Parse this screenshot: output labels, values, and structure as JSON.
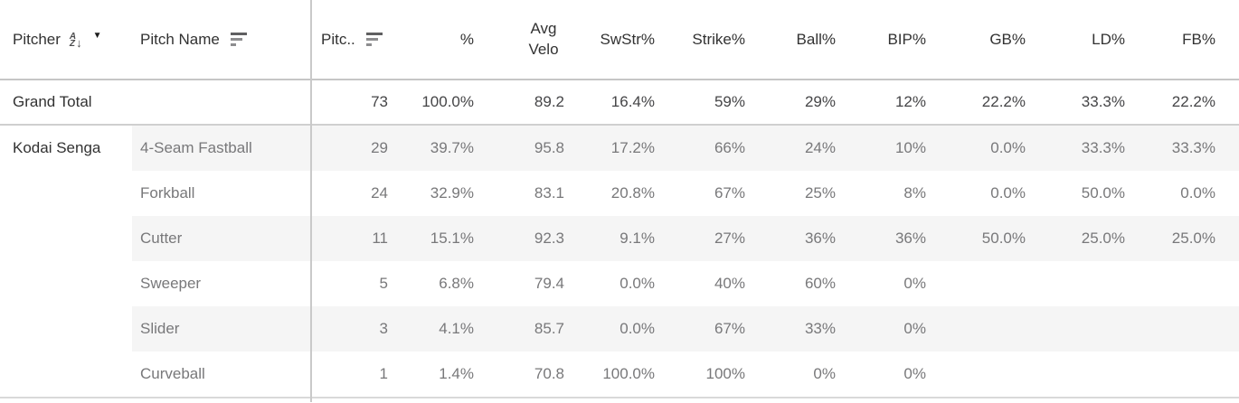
{
  "table": {
    "columns": {
      "pitcher": "Pitcher",
      "pitch_name": "Pitch Name",
      "pitches": "Pitc..",
      "pct": "%",
      "avg_velo": "Avg Velo",
      "swstr": "SwStr%",
      "strike": "Strike%",
      "ball": "Ball%",
      "bip": "BIP%",
      "gb": "GB%",
      "ld": "LD%",
      "fb": "FB%"
    },
    "grand_total": {
      "cells": [
        "Grand Total",
        "",
        "73",
        "100.0%",
        "89.2",
        "16.4%",
        "59%",
        "29%",
        "12%",
        "22.2%",
        "33.3%",
        "22.2%"
      ]
    },
    "rows": [
      {
        "cells": [
          "Kodai Senga",
          "4-Seam Fastball",
          "29",
          "39.7%",
          "95.8",
          "17.2%",
          "66%",
          "24%",
          "10%",
          "0.0%",
          "33.3%",
          "33.3%"
        ]
      },
      {
        "cells": [
          "",
          "Forkball",
          "24",
          "32.9%",
          "83.1",
          "20.8%",
          "67%",
          "25%",
          "8%",
          "0.0%",
          "50.0%",
          "0.0%"
        ]
      },
      {
        "cells": [
          "",
          "Cutter",
          "11",
          "15.1%",
          "92.3",
          "9.1%",
          "27%",
          "36%",
          "36%",
          "50.0%",
          "25.0%",
          "25.0%"
        ]
      },
      {
        "cells": [
          "",
          "Sweeper",
          "5",
          "6.8%",
          "79.4",
          "0.0%",
          "40%",
          "60%",
          "0%",
          "",
          "",
          ""
        ]
      },
      {
        "cells": [
          "",
          "Slider",
          "3",
          "4.1%",
          "85.7",
          "0.0%",
          "67%",
          "33%",
          "0%",
          "",
          "",
          ""
        ]
      },
      {
        "cells": [
          "",
          "Curveball",
          "1",
          "1.4%",
          "70.8",
          "100.0%",
          "100%",
          "0%",
          "0%",
          "",
          "",
          ""
        ]
      }
    ]
  },
  "icons": {
    "az_a": "A",
    "az_z": "Z",
    "az_arrow": "↓",
    "caret_down": "▼"
  },
  "colors": {
    "banding": "#f5f5f5",
    "header_text": "#323232",
    "body_text": "#78787a",
    "total_text": "#454547",
    "divider": "#c9c9c9"
  }
}
